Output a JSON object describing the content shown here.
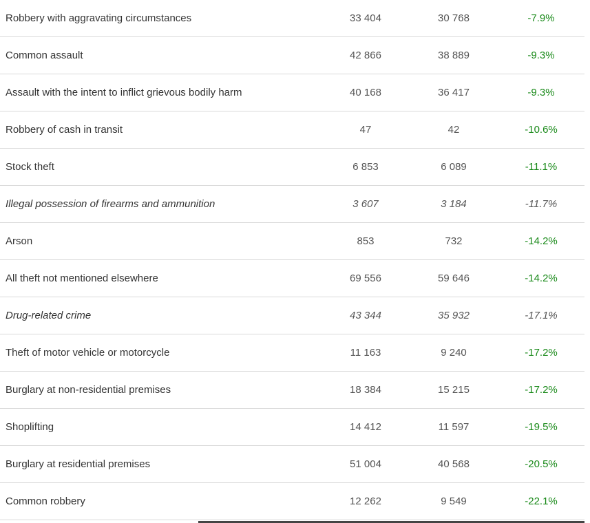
{
  "rows": [
    {
      "name": "Robbery with aggravating circumstances",
      "v1": "33 404",
      "v2": "30 768",
      "change": "-7.9%",
      "italic": false
    },
    {
      "name": "Common assault",
      "v1": "42 866",
      "v2": "38 889",
      "change": "-9.3%",
      "italic": false
    },
    {
      "name": "Assault with the intent to inflict grievous bodily harm",
      "v1": "40 168",
      "v2": "36 417",
      "change": "-9.3%",
      "italic": false
    },
    {
      "name": "Robbery of cash in transit",
      "v1": "47",
      "v2": "42",
      "change": "-10.6%",
      "italic": false
    },
    {
      "name": "Stock theft",
      "v1": "6 853",
      "v2": "6 089",
      "change": "-11.1%",
      "italic": false
    },
    {
      "name": "Illegal possession of firearms and ammunition",
      "v1": "3 607",
      "v2": "3 184",
      "change": "-11.7%",
      "italic": true
    },
    {
      "name": "Arson",
      "v1": "853",
      "v2": "732",
      "change": "-14.2%",
      "italic": false
    },
    {
      "name": "All theft not mentioned elsewhere",
      "v1": "69 556",
      "v2": "59 646",
      "change": "-14.2%",
      "italic": false
    },
    {
      "name": "Drug-related crime",
      "v1": "43 344",
      "v2": "35 932",
      "change": "-17.1%",
      "italic": true
    },
    {
      "name": "Theft of motor vehicle or motorcycle",
      "v1": "11 163",
      "v2": "9 240",
      "change": "-17.2%",
      "italic": false
    },
    {
      "name": "Burglary at non-residential premises",
      "v1": "18 384",
      "v2": "15 215",
      "change": "-17.2%",
      "italic": false
    },
    {
      "name": "Shoplifting",
      "v1": "14 412",
      "v2": "11 597",
      "change": "-19.5%",
      "italic": false
    },
    {
      "name": "Burglary at residential premises",
      "v1": "51 004",
      "v2": "40 568",
      "change": "-20.5%",
      "italic": false
    },
    {
      "name": "Common robbery",
      "v1": "12 262",
      "v2": "9 549",
      "change": "-22.1%",
      "italic": false
    }
  ],
  "colors": {
    "decrease": "#1a8a1a",
    "text": "#333333",
    "muted": "#555555",
    "divider": "#d9d9d9"
  }
}
